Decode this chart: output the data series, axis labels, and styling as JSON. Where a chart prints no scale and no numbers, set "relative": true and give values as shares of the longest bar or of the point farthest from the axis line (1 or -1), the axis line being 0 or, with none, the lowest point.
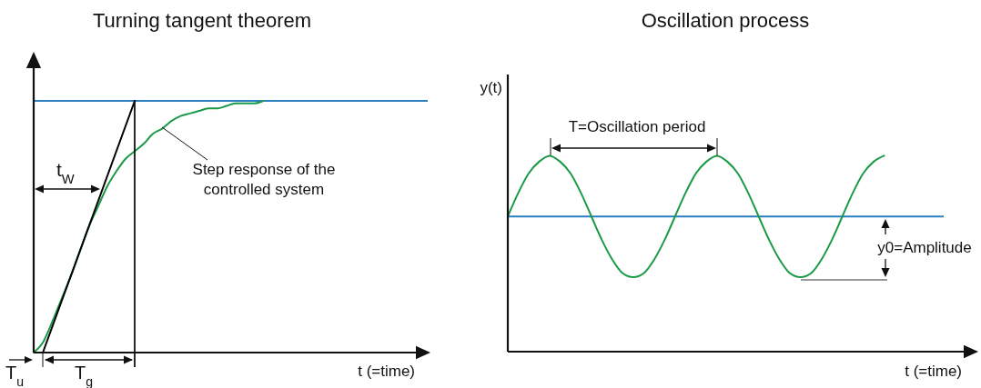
{
  "chart_data": [
    {
      "type": "line",
      "title": "Turning tangent theorem",
      "xlabel": "t (=time)",
      "relative": true,
      "categories": [
        null,
        null,
        null,
        null,
        null,
        null,
        null,
        null,
        null,
        null,
        null,
        null,
        null,
        null,
        null,
        null,
        null,
        null,
        null,
        null,
        null,
        null,
        null,
        null,
        null,
        null,
        null,
        null,
        null,
        null,
        null,
        null,
        null,
        null,
        null,
        null,
        null,
        null,
        null,
        null,
        null,
        null,
        null
      ],
      "series": [
        {
          "color": "#1a9a48",
          "values": [
            0,
            0.04,
            0.12,
            0.21,
            0.3,
            0.4,
            0.5,
            0.58,
            0.66,
            0.72,
            0.77,
            0.8,
            0.83,
            0.87,
            0.89,
            0.92,
            0.94,
            0.95,
            0.96,
            0.97,
            0.97,
            0.98,
            0.99,
            0.99,
            0.99,
            1,
            null,
            null,
            null,
            null,
            null,
            null,
            null,
            null,
            null,
            null,
            null,
            null,
            null,
            null,
            null,
            null,
            null
          ]
        },
        {
          "color": "#000000",
          "values": [
            null,
            0,
            null,
            null,
            null,
            null,
            null,
            null,
            null,
            null,
            null,
            1,
            null,
            null,
            null,
            null,
            null,
            null,
            null,
            null,
            null,
            null,
            null,
            null,
            null,
            null,
            null,
            null,
            null,
            null,
            null,
            null,
            null,
            null,
            null,
            null,
            null,
            null,
            null,
            null,
            null,
            null,
            null
          ]
        }
      ],
      "ref_lines": [
        {
          "axis": "y",
          "value": 1,
          "color": "#2a7fc0"
        }
      ],
      "annotations": [
        "Step response of the\ncontrolled system",
        "t$_{W}$",
        "T$_{u}$",
        "T$_{g}$"
      ]
    },
    {
      "type": "line",
      "title": "Oscillation process",
      "xlabel": "t (=time)",
      "ylabel": "y(t)",
      "relative": true,
      "categories": [
        null,
        null,
        null,
        null,
        null,
        null,
        null,
        null,
        null,
        null,
        null,
        null,
        null,
        null,
        null,
        null,
        null,
        null,
        null,
        null,
        null,
        null,
        null,
        null,
        null,
        null,
        null,
        null,
        null,
        null,
        null,
        null,
        null,
        null,
        null,
        null,
        null,
        null,
        null,
        null,
        null,
        null
      ],
      "series": [
        {
          "color": "#1a9a48",
          "values": [
            0.69,
            0.81,
            0.91,
            0.97,
            1,
            0.97,
            0.91,
            0.81,
            0.69,
            0.57,
            0.47,
            0.4,
            0.38,
            0.4,
            0.47,
            0.57,
            0.69,
            0.81,
            0.91,
            0.97,
            1,
            0.97,
            0.91,
            0.81,
            0.69,
            0.57,
            0.47,
            0.4,
            0.38,
            0.4,
            0.47,
            0.57,
            0.69,
            0.81,
            0.91,
            0.97,
            1,
            null,
            null,
            null,
            null,
            null
          ]
        }
      ],
      "ref_lines": [
        {
          "axis": "y",
          "value": 0.69,
          "color": "#2a7fc0"
        }
      ],
      "annotations": [
        "T=Oscillation period",
        "y0=Amplitude"
      ]
    }
  ]
}
